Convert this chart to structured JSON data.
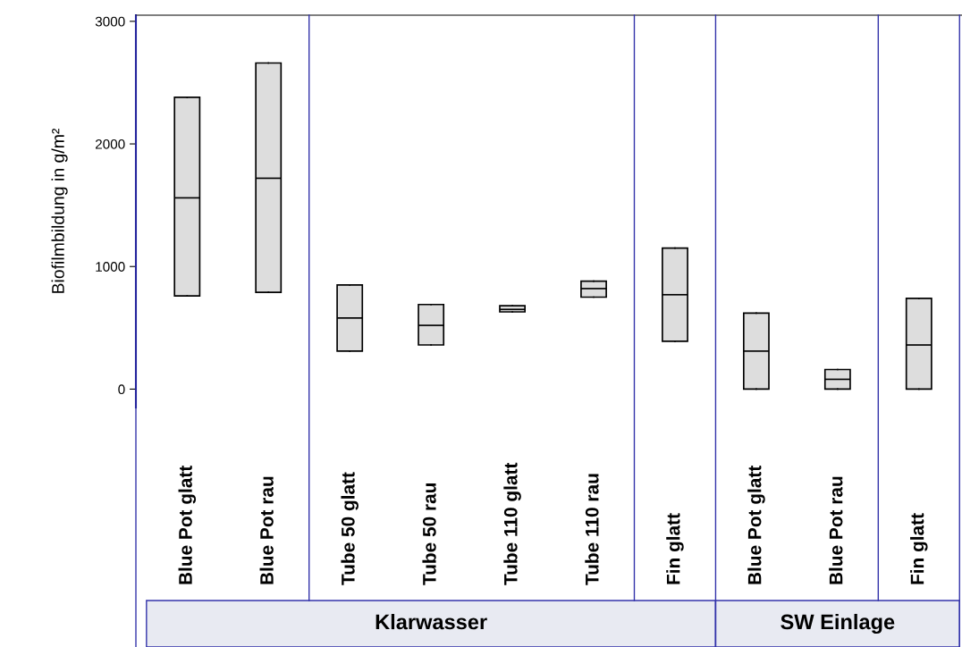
{
  "chart_data": {
    "type": "box",
    "ylabel": "Biofilmbildung in g/m²",
    "categories": [
      "Blue Pot glatt",
      "Blue Pot rau",
      "Tube 50 glatt",
      "Tube 50 rau",
      "Tube 110 glatt",
      "Tube 110 rau",
      "Fin glatt",
      "Blue Pot glatt",
      "Blue Pot rau",
      "Fin glatt"
    ],
    "boxes": [
      {
        "low": 760,
        "q1": 760,
        "median": 1560,
        "q3": 2380,
        "high": 2380
      },
      {
        "low": 790,
        "q1": 790,
        "median": 1720,
        "q3": 2660,
        "high": 2660
      },
      {
        "low": 310,
        "q1": 310,
        "median": 580,
        "q3": 850,
        "high": 850
      },
      {
        "low": 360,
        "q1": 360,
        "median": 520,
        "q3": 690,
        "high": 690
      },
      {
        "low": 630,
        "q1": 630,
        "median": 650,
        "q3": 680,
        "high": 680
      },
      {
        "low": 750,
        "q1": 750,
        "median": 820,
        "q3": 880,
        "high": 880
      },
      {
        "low": 390,
        "q1": 390,
        "median": 770,
        "q3": 1150,
        "high": 1150
      },
      {
        "low": 0,
        "q1": 0,
        "median": 310,
        "q3": 620,
        "high": 620
      },
      {
        "low": 0,
        "q1": 0,
        "median": 80,
        "q3": 160,
        "high": 160
      },
      {
        "low": 0,
        "q1": 0,
        "median": 360,
        "q3": 740,
        "high": 740
      }
    ],
    "color": "#dddddd",
    "ylim": [
      -150,
      3050
    ],
    "yticks": [
      0,
      1000,
      2000,
      3000
    ],
    "grid": false,
    "legend": false,
    "annotations": [
      "Klarwasser",
      "SW Einlage"
    ]
  }
}
